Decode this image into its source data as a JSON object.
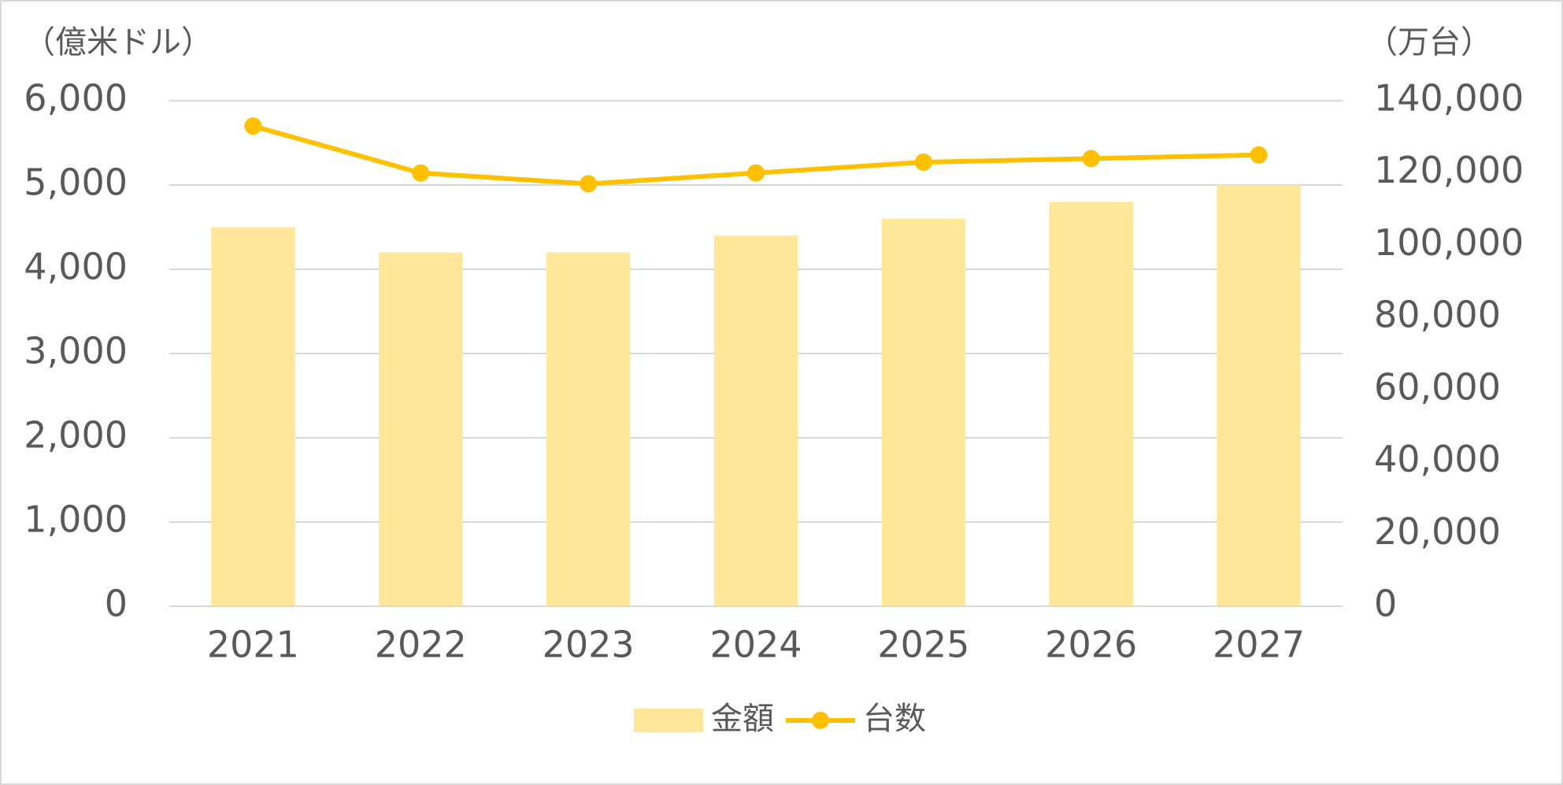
{
  "chart_data": {
    "type": "bar",
    "y_label": "（億米ドル）",
    "y2_label": "（万台）",
    "categories": [
      "2021",
      "2022",
      "2023",
      "2024",
      "2025",
      "2026",
      "2027"
    ],
    "series": [
      {
        "name": "金額",
        "type": "bar",
        "color": "#ffe699",
        "values": [
          4500,
          4200,
          4200,
          4400,
          4600,
          4800,
          5000
        ]
      },
      {
        "name": "台数",
        "type": "line",
        "axis": "y2",
        "color": "#ffc000",
        "values": [
          133000,
          120000,
          117000,
          120000,
          123000,
          124000,
          125000
        ]
      }
    ],
    "ylim": [
      0,
      6000
    ],
    "yticks": [
      0,
      {
        "value": 1000,
        "label": "1,000"
      },
      {
        "value": 2000,
        "label": "2,000"
      },
      {
        "value": 3000,
        "label": "3,000"
      },
      {
        "value": 4000,
        "label": "4,000"
      },
      {
        "value": 5000,
        "label": "5,000"
      },
      {
        "value": 6000,
        "label": "6,000"
      }
    ],
    "y2lim": [
      0,
      140000
    ],
    "y2ticks": [
      0,
      {
        "value": 20000,
        "label": "20,000"
      },
      {
        "value": 40000,
        "label": "40,000"
      },
      {
        "value": 60000,
        "label": "60,000"
      },
      {
        "value": 80000,
        "label": "80,000"
      },
      {
        "value": 100000,
        "label": "100,000"
      },
      {
        "value": 120000,
        "label": "120,000"
      },
      {
        "value": 140000,
        "label": "140,000"
      }
    ],
    "grid": true,
    "legend": "bottom"
  }
}
